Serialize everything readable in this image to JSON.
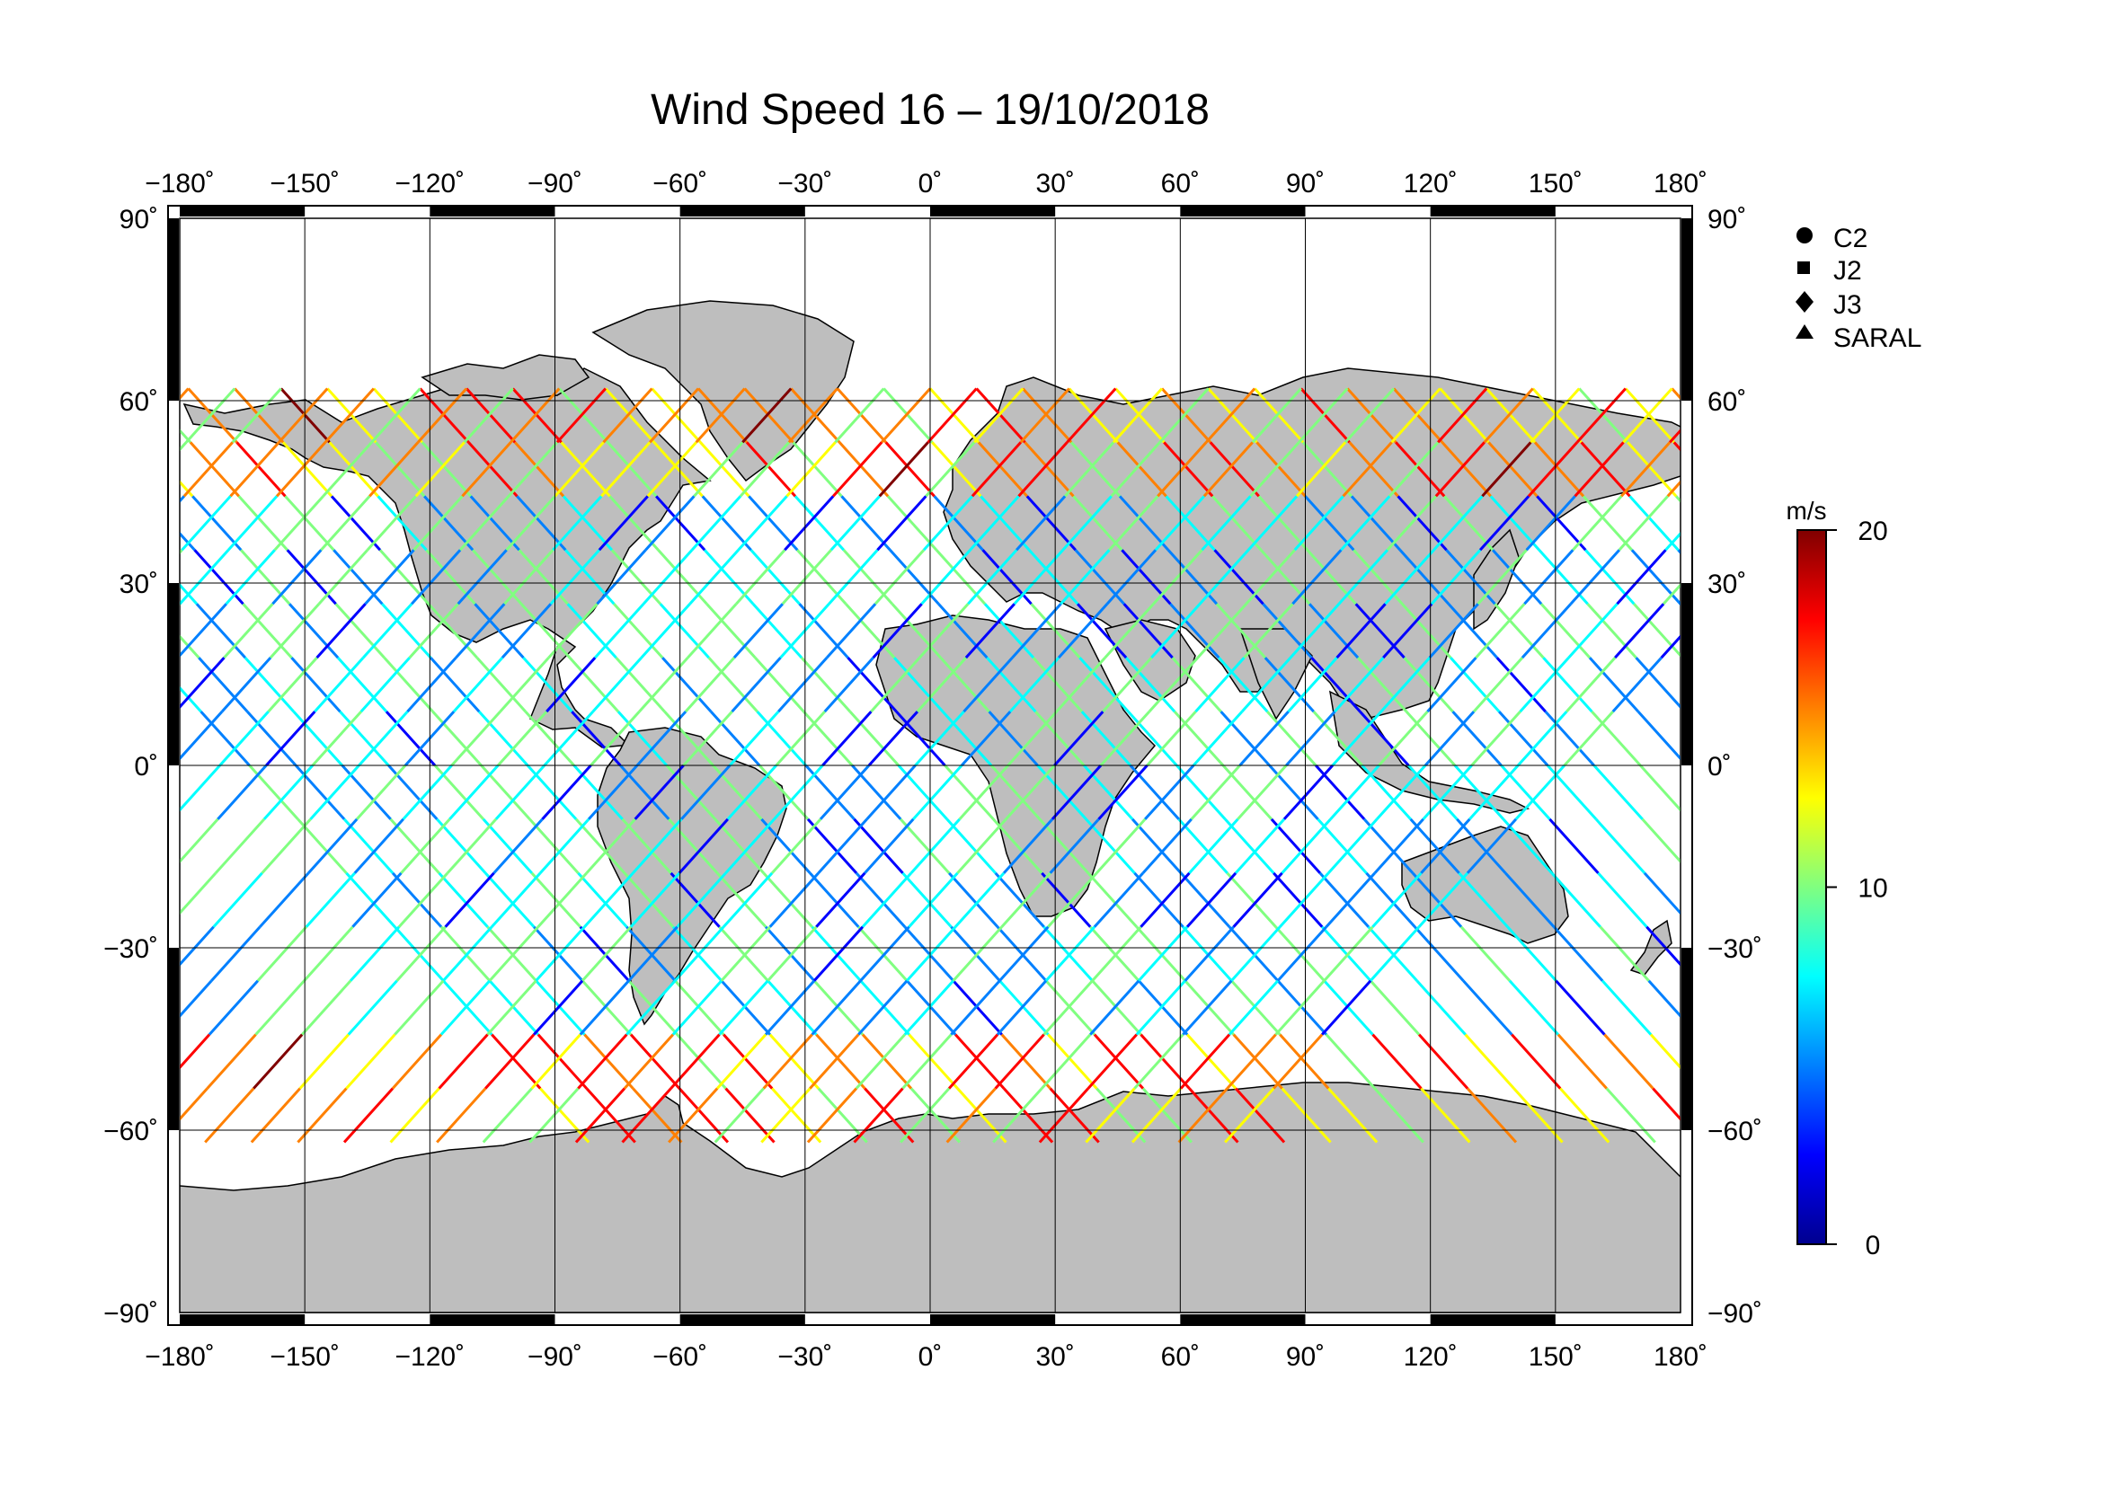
{
  "title": "Wind Speed 16 – 19/10/2018",
  "map": {
    "projection": "cylindrical",
    "lon_range": [
      -180,
      180
    ],
    "lat_range": [
      -90,
      90
    ],
    "gridlines": true,
    "land_color": "#bebebe",
    "ocean_color": "#ffffff",
    "lon_ticks": [
      -180,
      -150,
      -120,
      -90,
      -60,
      -30,
      0,
      30,
      60,
      90,
      120,
      150,
      180
    ],
    "lat_ticks": [
      90,
      60,
      30,
      0,
      -30,
      -60,
      -90
    ],
    "lon_tick_labels": [
      "−180˚",
      "−150˚",
      "−120˚",
      "−90˚",
      "−60˚",
      "−30˚",
      "0˚",
      "30˚",
      "60˚",
      "90˚",
      "120˚",
      "150˚",
      "180˚"
    ],
    "lat_tick_labels": [
      "90˚",
      "60˚",
      "30˚",
      "0˚",
      "−30˚",
      "−60˚",
      "−90˚"
    ],
    "track_coverage_lat": [
      -62,
      62
    ]
  },
  "legend": {
    "placement": "top-right",
    "items": [
      {
        "label": "C2",
        "icon": "circle-marker-icon"
      },
      {
        "label": "J2",
        "icon": "square-marker-icon"
      },
      {
        "label": "J3",
        "icon": "diamond-marker-icon"
      },
      {
        "label": "SARAL",
        "icon": "triangle-marker-icon"
      }
    ]
  },
  "colorbar": {
    "unit": "m/s",
    "min": 0,
    "max": 20,
    "tick_values": [
      20,
      10,
      0
    ],
    "tick_labels": [
      "20",
      "10",
      "0"
    ],
    "colormap": [
      "#00008f",
      "#0000ff",
      "#0080ff",
      "#00ffff",
      "#80ff80",
      "#ffff00",
      "#ff8000",
      "#ff0000",
      "#800000"
    ]
  },
  "chart_data": {
    "type": "scatter",
    "title": "Wind Speed 16 – 19/10/2018",
    "xlabel": "",
    "ylabel": "",
    "xlim": [
      -180,
      180
    ],
    "ylim": [
      -90,
      90
    ],
    "grid": true,
    "legend_placement": "top-right",
    "series": [
      {
        "name": "C2",
        "marker": "circle"
      },
      {
        "name": "J2",
        "marker": "square"
      },
      {
        "name": "J3",
        "marker": "diamond"
      },
      {
        "name": "SARAL",
        "marker": "triangle"
      }
    ],
    "color_scale": {
      "label": "m/s",
      "min": 0,
      "max": 20
    }
  }
}
